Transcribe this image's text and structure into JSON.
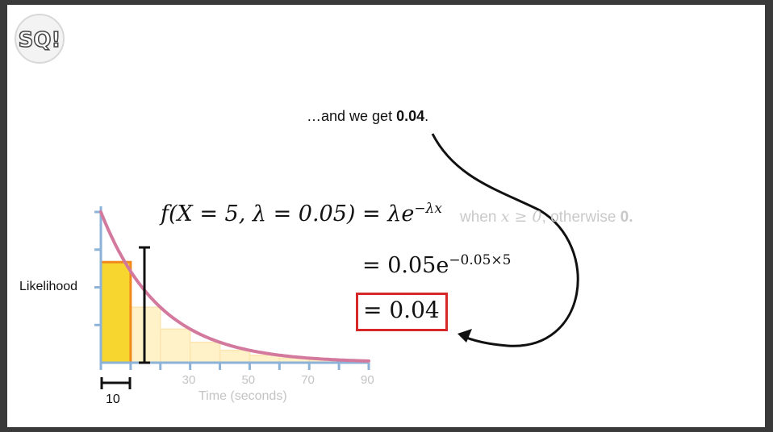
{
  "logo": {
    "icon": "statquest-logo-icon",
    "text": "SQ!"
  },
  "caption": {
    "prefix": "…and we get ",
    "value": "0.04",
    "suffix": "."
  },
  "formula": {
    "lhs": "f(X = 5, λ = 0.05) = λe",
    "lhs_exp": "−λx",
    "condition_pre": "when ",
    "condition_var": "x ≥ 0",
    "condition_post": ", otherwise ",
    "condition_zero": "0.",
    "step2_base": "= 0.05e",
    "step2_exp": "−0.05×5",
    "result": "= 0.04"
  },
  "chart_data": {
    "type": "bar",
    "ylabel": "Likelihood",
    "xlabel": "Time (seconds)",
    "x_tick_labels": [
      "30",
      "50",
      "70",
      "90"
    ],
    "bin_width_label": "10",
    "xlim": [
      0,
      90
    ],
    "lambda": 0.05,
    "highlighted_bin": [
      0,
      10
    ],
    "bins": [
      0,
      10,
      20,
      30,
      40,
      50,
      60,
      70,
      80,
      90
    ],
    "curve": "f(x) = 0.05 e^(-0.05x)"
  },
  "colors": {
    "curve": "#d4799e",
    "highlight_fill": "#f7d630",
    "highlight_stroke": "#f08a1c",
    "faded_bins": "#fff1c8",
    "axis": "#8db2d8",
    "result_box": "#d62828"
  }
}
